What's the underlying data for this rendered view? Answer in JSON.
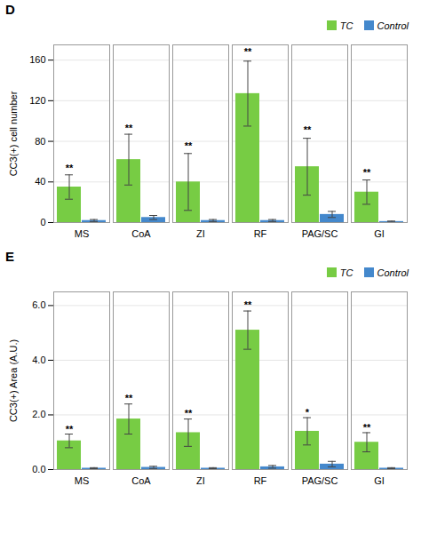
{
  "chart_data": [
    {
      "type": "bar",
      "title": "D",
      "categories": [
        "MS",
        "CoA",
        "ZI",
        "RF",
        "PAG/SC",
        "GI"
      ],
      "series": [
        {
          "name": "TC",
          "color": "#77cc44",
          "values": [
            35,
            62,
            40,
            127,
            55,
            30
          ],
          "errors": [
            12,
            25,
            28,
            32,
            28,
            12
          ]
        },
        {
          "name": "Control",
          "color": "#4488cc",
          "values": [
            2,
            5,
            2,
            2,
            8,
            1
          ],
          "errors": [
            1,
            2,
            1,
            1,
            3,
            0.5
          ]
        }
      ],
      "ylabel": "CC3(+) cell number",
      "ylim": [
        0,
        175
      ],
      "yticks": [
        0,
        40,
        80,
        120,
        160
      ],
      "grid": true,
      "legend": "upper right",
      "annotations": [
        {
          "text": "**",
          "category": "MS",
          "series": "TC",
          "y": 50
        },
        {
          "text": "**",
          "category": "CoA",
          "series": "TC",
          "y": 90
        },
        {
          "text": "**",
          "category": "ZI",
          "series": "TC",
          "y": 72
        },
        {
          "text": "**",
          "category": "RF",
          "series": "TC",
          "y": 165
        },
        {
          "text": "**",
          "category": "PAG/SC",
          "series": "TC",
          "y": 88
        },
        {
          "text": "**",
          "category": "GI",
          "series": "TC",
          "y": 46
        }
      ]
    },
    {
      "type": "bar",
      "title": "E",
      "categories": [
        "MS",
        "CoA",
        "ZI",
        "RF",
        "PAG/SC",
        "GI"
      ],
      "series": [
        {
          "name": "TC",
          "color": "#77cc44",
          "values": [
            1.05,
            1.85,
            1.35,
            5.1,
            1.4,
            1.0
          ],
          "errors": [
            0.25,
            0.55,
            0.5,
            0.7,
            0.5,
            0.35
          ]
        },
        {
          "name": "Control",
          "color": "#4488cc",
          "values": [
            0.05,
            0.08,
            0.05,
            0.1,
            0.2,
            0.05
          ],
          "errors": [
            0.02,
            0.04,
            0.02,
            0.05,
            0.1,
            0.02
          ]
        }
      ],
      "ylabel": "CC3(+) Area (A.U.)",
      "ylim": [
        0,
        6.5
      ],
      "yticks": [
        0,
        2,
        4,
        6
      ],
      "grid": true,
      "legend": "upper right",
      "annotations": [
        {
          "text": "**",
          "category": "MS",
          "series": "TC",
          "y": 1.35
        },
        {
          "text": "**",
          "category": "CoA",
          "series": "TC",
          "y": 2.5
        },
        {
          "text": "**",
          "category": "ZI",
          "series": "TC",
          "y": 1.95
        },
        {
          "text": "**",
          "category": "RF",
          "series": "TC",
          "y": 5.9
        },
        {
          "text": "*",
          "category": "PAG/SC",
          "series": "TC",
          "y": 1.98
        },
        {
          "text": "**",
          "category": "GI",
          "series": "TC",
          "y": 1.42
        }
      ]
    }
  ]
}
